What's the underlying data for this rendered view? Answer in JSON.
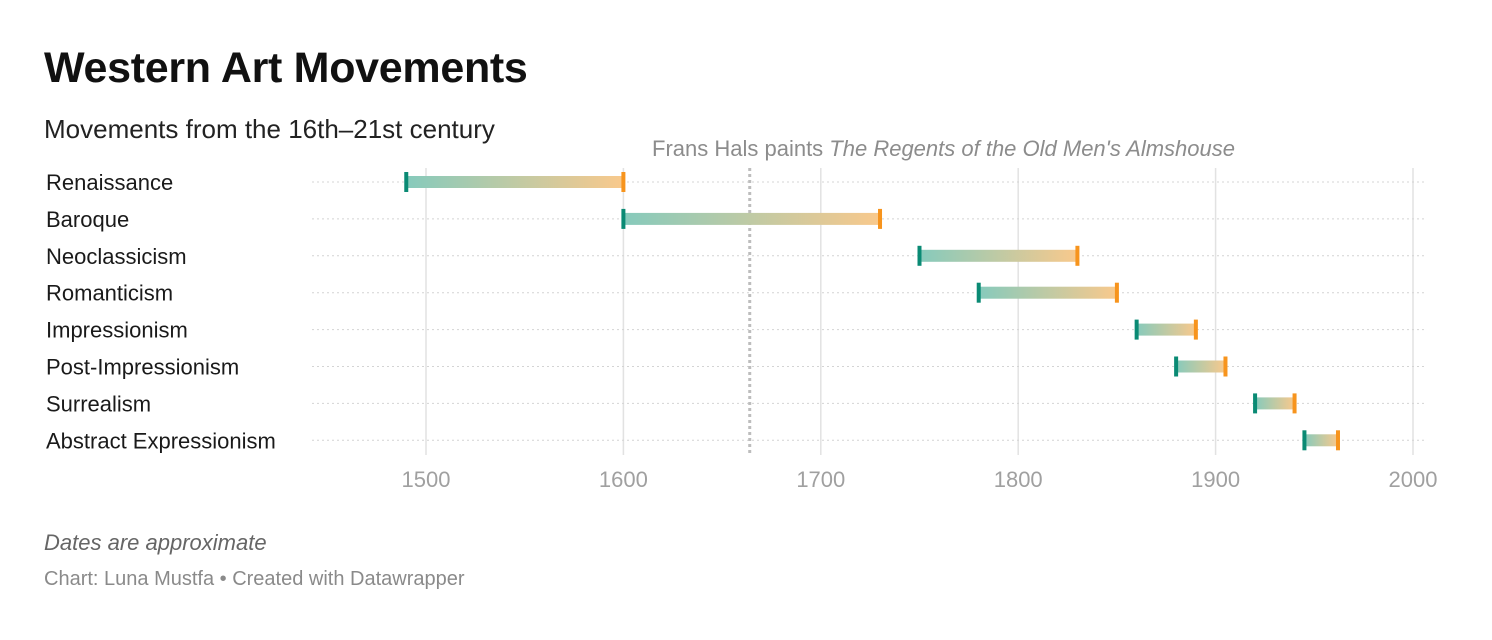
{
  "header": {
    "title": "Western Art Movements",
    "subtitle": "Movements from the 16th–21st century"
  },
  "footer": {
    "note": "Dates are approximate",
    "byline": "Chart: Luna Mustfa • Created with Datawrapper"
  },
  "colors": {
    "start": "#0a8a74",
    "end": "#f7941d",
    "start_fill": "#86cabc",
    "end_fill": "#f9c98c",
    "grid": "#e2e2e2",
    "tick_label": "#a0a0a0",
    "annotation": "#8c8c8c",
    "annotation_line": "#bdbdbd"
  },
  "chart_data": {
    "type": "range-bar",
    "xlim": [
      1450,
      2010
    ],
    "xticks": [
      1500,
      1600,
      1700,
      1800,
      1900,
      2000
    ],
    "grid": true,
    "rows": [
      {
        "label": "Renaissance",
        "start": 1490,
        "end": 1600
      },
      {
        "label": "Baroque",
        "start": 1600,
        "end": 1730
      },
      {
        "label": "Neoclassicism",
        "start": 1750,
        "end": 1830
      },
      {
        "label": "Romanticism",
        "start": 1780,
        "end": 1850
      },
      {
        "label": "Impressionism",
        "start": 1860,
        "end": 1890
      },
      {
        "label": "Post-Impressionism",
        "start": 1880,
        "end": 1905
      },
      {
        "label": "Surrealism",
        "start": 1920,
        "end": 1940
      },
      {
        "label": "Abstract Expressionism",
        "start": 1945,
        "end": 1962
      }
    ],
    "annotation": {
      "x": 1664,
      "text_plain": "Frans Hals paints ",
      "text_italic": "The Regents of the Old Men's Almshouse"
    }
  }
}
